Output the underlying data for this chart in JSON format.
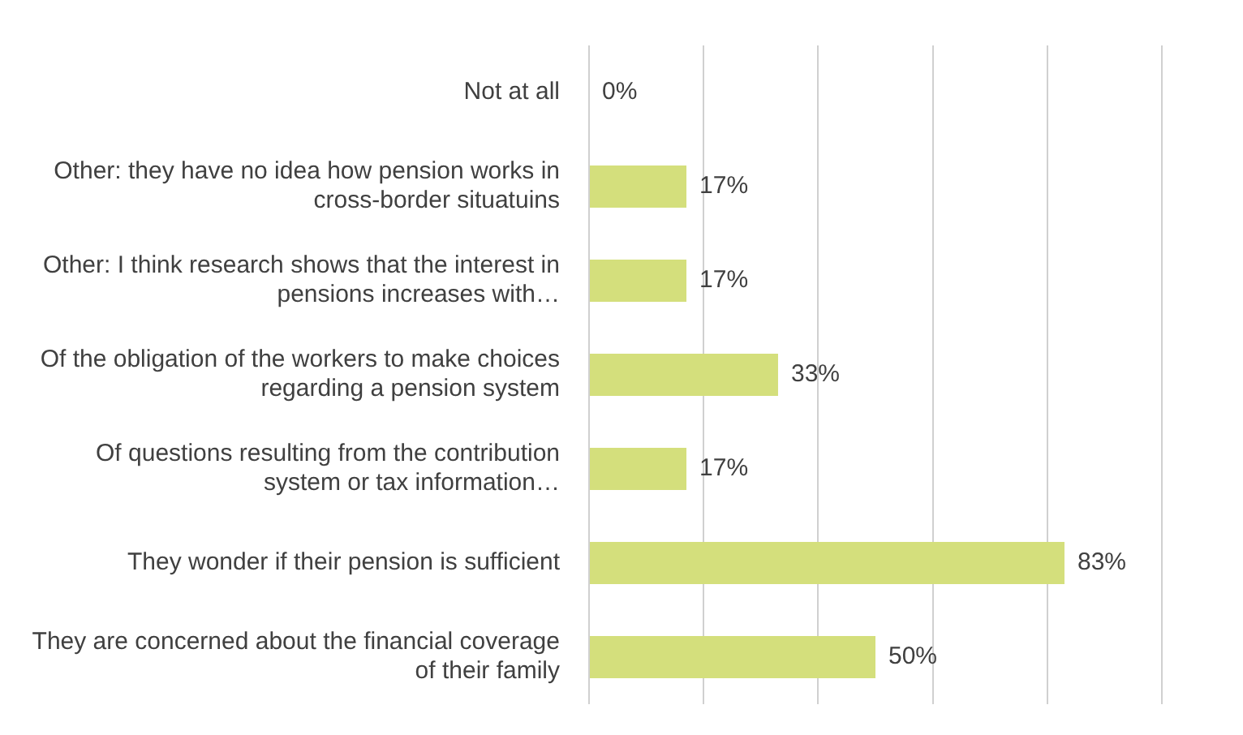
{
  "chart_data": {
    "type": "bar",
    "orientation": "horizontal",
    "categories": [
      "Not at all",
      "Other: they have no idea how pension works in cross-border situatuins",
      "Other: I think research shows that the interest in pensions increases with…",
      "Of the obligation of the workers to make choices regarding a pension system",
      "Of questions resulting from the contribution system or tax information…",
      "They wonder if their pension is sufficient",
      "They are concerned about the financial coverage of their family"
    ],
    "values": [
      0,
      17,
      17,
      33,
      17,
      83,
      50
    ],
    "value_labels": [
      "0%",
      "17%",
      "17%",
      "33%",
      "17%",
      "83%",
      "50%"
    ],
    "color": "#d4df7c",
    "grid": "x",
    "tick_labels": "y",
    "legend": false
  }
}
